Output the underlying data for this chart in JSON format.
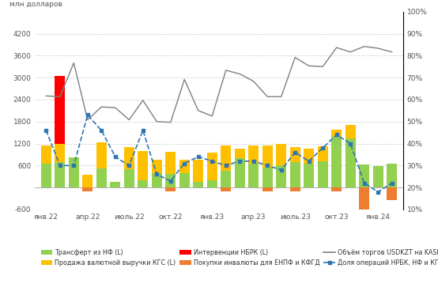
{
  "ylabel_left": "млн долларов",
  "ylim_left": [
    -600,
    4800
  ],
  "ylim_right": [
    0.1,
    1.0
  ],
  "yticks_left": [
    -600,
    0,
    600,
    1200,
    1800,
    2400,
    3000,
    3600,
    4200
  ],
  "yticks_right": [
    0.1,
    0.2,
    0.3,
    0.4,
    0.5,
    0.6,
    0.7,
    0.8,
    0.9,
    1.0
  ],
  "xtick_labels": [
    "янв.22",
    "апр.22",
    "июль.22",
    "окт.22",
    "янв.23",
    "апр.23",
    "июль.23",
    "окт.23",
    "янв.24"
  ],
  "xtick_positions": [
    0,
    3,
    6,
    9,
    12,
    15,
    18,
    21,
    24
  ],
  "colors": {
    "transfer": "#92D050",
    "sales": "#FFC000",
    "interventions": "#FF0000",
    "purchases": "#ED7D31",
    "volume": "#7F7F7F",
    "share": "#2E75B6"
  },
  "n_bars": 26,
  "transfer_nf": [
    650,
    700,
    820,
    0,
    530,
    150,
    500,
    200,
    400,
    380,
    400,
    150,
    200,
    450,
    800,
    650,
    550,
    600,
    700,
    650,
    720,
    1380,
    1350,
    620,
    590,
    650
  ],
  "sales_kgs": [
    500,
    500,
    0,
    350,
    700,
    0,
    600,
    800,
    350,
    600,
    350,
    600,
    750,
    700,
    250,
    500,
    600,
    600,
    400,
    400,
    400,
    200,
    350,
    0,
    0,
    0
  ],
  "interventions_nbrk": [
    0,
    1850,
    0,
    0,
    0,
    0,
    0,
    0,
    0,
    0,
    0,
    0,
    0,
    0,
    0,
    0,
    0,
    0,
    0,
    0,
    0,
    0,
    0,
    0,
    0,
    0
  ],
  "purchases_enpf": [
    0,
    0,
    0,
    -100,
    0,
    0,
    0,
    0,
    0,
    -100,
    0,
    0,
    0,
    -100,
    0,
    0,
    -100,
    0,
    -100,
    0,
    0,
    -100,
    0,
    -600,
    0,
    -350
  ],
  "volume_usdkzt": [
    2500,
    2480,
    3400,
    1850,
    2200,
    2180,
    1850,
    2380,
    1800,
    1780,
    2950,
    2100,
    1950,
    3200,
    3100,
    2900,
    2480,
    2480,
    3550,
    3320,
    3300,
    3820,
    3700,
    3850,
    3800,
    3700
  ],
  "share_ops": [
    0.46,
    0.3,
    0.3,
    0.53,
    0.46,
    0.34,
    0.3,
    0.46,
    0.26,
    0.23,
    0.31,
    0.34,
    0.32,
    0.3,
    0.32,
    0.32,
    0.3,
    0.28,
    0.36,
    0.32,
    0.38,
    0.44,
    0.4,
    0.22,
    0.18,
    0.22
  ],
  "legend_labels": [
    "Трансферт из НФ (L)",
    "Продажа валютной выручки КГС (L)",
    "Интервенции НБРК (L)",
    "Покупки инвалюты для ЕНПФ и КФГД",
    "Объём торгов USDKZT на KASE (L)",
    "Доля операций НРБК, НФ и КГС (R)"
  ]
}
